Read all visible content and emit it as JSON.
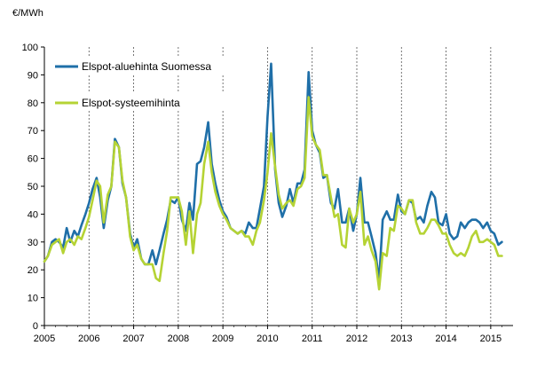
{
  "chart_data": {
    "type": "line",
    "title": "",
    "ylabel": "€/MWh",
    "xlabel": "",
    "ylim": [
      0,
      100
    ],
    "yticks": [
      "0",
      "10",
      "20",
      "30",
      "40",
      "50",
      "60",
      "70",
      "80",
      "90",
      "100"
    ],
    "xlim": [
      2005,
      2015.5
    ],
    "xticks": [
      "2005",
      "2006",
      "2007",
      "2008",
      "2009",
      "2010",
      "2011",
      "2012",
      "2013",
      "2014",
      "2015"
    ],
    "grid": "vertical dashed at year boundaries",
    "legend_position": "top-left",
    "series": [
      {
        "name": "Elspot-aluehinta Suomessa",
        "color": "#1f6fa8",
        "points": [
          [
            2005.0,
            23
          ],
          [
            2005.08,
            25
          ],
          [
            2005.17,
            30
          ],
          [
            2005.25,
            31
          ],
          [
            2005.33,
            30
          ],
          [
            2005.42,
            28
          ],
          [
            2005.5,
            35
          ],
          [
            2005.58,
            30
          ],
          [
            2005.67,
            34
          ],
          [
            2005.75,
            32
          ],
          [
            2005.83,
            36
          ],
          [
            2005.92,
            40
          ],
          [
            2006.0,
            44
          ],
          [
            2006.08,
            49
          ],
          [
            2006.17,
            53
          ],
          [
            2006.25,
            46
          ],
          [
            2006.33,
            35
          ],
          [
            2006.42,
            45
          ],
          [
            2006.5,
            50
          ],
          [
            2006.58,
            67
          ],
          [
            2006.67,
            64
          ],
          [
            2006.75,
            51
          ],
          [
            2006.83,
            46
          ],
          [
            2006.92,
            33
          ],
          [
            2007.0,
            28
          ],
          [
            2007.08,
            31
          ],
          [
            2007.17,
            24
          ],
          [
            2007.25,
            22
          ],
          [
            2007.33,
            22
          ],
          [
            2007.42,
            27
          ],
          [
            2007.5,
            22
          ],
          [
            2007.58,
            27
          ],
          [
            2007.67,
            33
          ],
          [
            2007.75,
            38
          ],
          [
            2007.83,
            45
          ],
          [
            2007.92,
            44
          ],
          [
            2008.0,
            46
          ],
          [
            2008.08,
            38
          ],
          [
            2008.17,
            34
          ],
          [
            2008.25,
            44
          ],
          [
            2008.33,
            38
          ],
          [
            2008.42,
            58
          ],
          [
            2008.5,
            59
          ],
          [
            2008.58,
            64
          ],
          [
            2008.67,
            73
          ],
          [
            2008.75,
            58
          ],
          [
            2008.83,
            51
          ],
          [
            2008.92,
            45
          ],
          [
            2009.0,
            41
          ],
          [
            2009.08,
            39
          ],
          [
            2009.17,
            35
          ],
          [
            2009.25,
            34
          ],
          [
            2009.33,
            33
          ],
          [
            2009.42,
            34
          ],
          [
            2009.5,
            33
          ],
          [
            2009.58,
            37
          ],
          [
            2009.67,
            35
          ],
          [
            2009.75,
            35
          ],
          [
            2009.83,
            42
          ],
          [
            2009.92,
            50
          ],
          [
            2010.0,
            75
          ],
          [
            2010.08,
            94
          ],
          [
            2010.17,
            56
          ],
          [
            2010.25,
            44
          ],
          [
            2010.33,
            39
          ],
          [
            2010.42,
            43
          ],
          [
            2010.5,
            49
          ],
          [
            2010.58,
            44
          ],
          [
            2010.67,
            51
          ],
          [
            2010.75,
            51
          ],
          [
            2010.83,
            56
          ],
          [
            2010.92,
            91
          ],
          [
            2011.0,
            70
          ],
          [
            2011.08,
            65
          ],
          [
            2011.17,
            62
          ],
          [
            2011.25,
            53
          ],
          [
            2011.33,
            54
          ],
          [
            2011.42,
            44
          ],
          [
            2011.5,
            42
          ],
          [
            2011.58,
            49
          ],
          [
            2011.67,
            37
          ],
          [
            2011.75,
            37
          ],
          [
            2011.83,
            42
          ],
          [
            2011.92,
            34
          ],
          [
            2012.0,
            40
          ],
          [
            2012.08,
            53
          ],
          [
            2012.17,
            37
          ],
          [
            2012.25,
            37
          ],
          [
            2012.33,
            32
          ],
          [
            2012.42,
            26
          ],
          [
            2012.5,
            16
          ],
          [
            2012.58,
            38
          ],
          [
            2012.67,
            41
          ],
          [
            2012.75,
            38
          ],
          [
            2012.83,
            38
          ],
          [
            2012.92,
            47
          ],
          [
            2013.0,
            41
          ],
          [
            2013.08,
            40
          ],
          [
            2013.17,
            45
          ],
          [
            2013.25,
            44
          ],
          [
            2013.33,
            38
          ],
          [
            2013.42,
            39
          ],
          [
            2013.5,
            37
          ],
          [
            2013.58,
            43
          ],
          [
            2013.67,
            48
          ],
          [
            2013.75,
            46
          ],
          [
            2013.83,
            37
          ],
          [
            2013.92,
            36
          ],
          [
            2014.0,
            40
          ],
          [
            2014.08,
            33
          ],
          [
            2014.17,
            31
          ],
          [
            2014.25,
            32
          ],
          [
            2014.33,
            37
          ],
          [
            2014.42,
            35
          ],
          [
            2014.5,
            37
          ],
          [
            2014.58,
            38
          ],
          [
            2014.67,
            38
          ],
          [
            2014.75,
            37
          ],
          [
            2014.83,
            35
          ],
          [
            2014.92,
            37
          ],
          [
            2015.0,
            34
          ],
          [
            2015.08,
            33
          ],
          [
            2015.17,
            29
          ],
          [
            2015.25,
            30
          ]
        ]
      },
      {
        "name": "Elspot-systeemihinta",
        "color": "#b5d334",
        "points": [
          [
            2005.0,
            23
          ],
          [
            2005.08,
            25
          ],
          [
            2005.17,
            29
          ],
          [
            2005.25,
            30
          ],
          [
            2005.33,
            31
          ],
          [
            2005.42,
            26
          ],
          [
            2005.5,
            30
          ],
          [
            2005.58,
            31
          ],
          [
            2005.67,
            29
          ],
          [
            2005.75,
            32
          ],
          [
            2005.83,
            31
          ],
          [
            2005.92,
            35
          ],
          [
            2006.0,
            39
          ],
          [
            2006.08,
            45
          ],
          [
            2006.17,
            52
          ],
          [
            2006.25,
            50
          ],
          [
            2006.33,
            37
          ],
          [
            2006.42,
            47
          ],
          [
            2006.5,
            50
          ],
          [
            2006.58,
            66
          ],
          [
            2006.67,
            64
          ],
          [
            2006.75,
            52
          ],
          [
            2006.83,
            46
          ],
          [
            2006.92,
            32
          ],
          [
            2007.0,
            27
          ],
          [
            2007.08,
            29
          ],
          [
            2007.17,
            24
          ],
          [
            2007.25,
            22
          ],
          [
            2007.33,
            22
          ],
          [
            2007.42,
            22
          ],
          [
            2007.5,
            17
          ],
          [
            2007.58,
            16
          ],
          [
            2007.67,
            26
          ],
          [
            2007.75,
            34
          ],
          [
            2007.83,
            46
          ],
          [
            2007.92,
            46
          ],
          [
            2008.0,
            46
          ],
          [
            2008.08,
            41
          ],
          [
            2008.17,
            29
          ],
          [
            2008.25,
            41
          ],
          [
            2008.33,
            26
          ],
          [
            2008.42,
            40
          ],
          [
            2008.5,
            44
          ],
          [
            2008.58,
            58
          ],
          [
            2008.67,
            66
          ],
          [
            2008.75,
            55
          ],
          [
            2008.83,
            48
          ],
          [
            2008.92,
            43
          ],
          [
            2009.0,
            40
          ],
          [
            2009.08,
            38
          ],
          [
            2009.17,
            35
          ],
          [
            2009.25,
            34
          ],
          [
            2009.33,
            33
          ],
          [
            2009.42,
            34
          ],
          [
            2009.5,
            32
          ],
          [
            2009.58,
            32
          ],
          [
            2009.67,
            29
          ],
          [
            2009.75,
            34
          ],
          [
            2009.83,
            37
          ],
          [
            2009.92,
            45
          ],
          [
            2010.0,
            55
          ],
          [
            2010.08,
            69
          ],
          [
            2010.17,
            57
          ],
          [
            2010.25,
            47
          ],
          [
            2010.33,
            42
          ],
          [
            2010.42,
            44
          ],
          [
            2010.5,
            45
          ],
          [
            2010.58,
            43
          ],
          [
            2010.67,
            49
          ],
          [
            2010.75,
            50
          ],
          [
            2010.83,
            53
          ],
          [
            2010.92,
            82
          ],
          [
            2011.0,
            68
          ],
          [
            2011.08,
            65
          ],
          [
            2011.17,
            63
          ],
          [
            2011.25,
            54
          ],
          [
            2011.33,
            54
          ],
          [
            2011.42,
            46
          ],
          [
            2011.5,
            39
          ],
          [
            2011.58,
            40
          ],
          [
            2011.67,
            29
          ],
          [
            2011.75,
            28
          ],
          [
            2011.83,
            42
          ],
          [
            2011.92,
            37
          ],
          [
            2012.0,
            40
          ],
          [
            2012.08,
            48
          ],
          [
            2012.17,
            29
          ],
          [
            2012.25,
            32
          ],
          [
            2012.33,
            27
          ],
          [
            2012.42,
            23
          ],
          [
            2012.5,
            13
          ],
          [
            2012.58,
            26
          ],
          [
            2012.67,
            25
          ],
          [
            2012.75,
            35
          ],
          [
            2012.83,
            34
          ],
          [
            2012.92,
            43
          ],
          [
            2013.0,
            42
          ],
          [
            2013.08,
            40
          ],
          [
            2013.17,
            45
          ],
          [
            2013.25,
            45
          ],
          [
            2013.33,
            37
          ],
          [
            2013.42,
            33
          ],
          [
            2013.5,
            33
          ],
          [
            2013.58,
            35
          ],
          [
            2013.67,
            38
          ],
          [
            2013.75,
            38
          ],
          [
            2013.83,
            36
          ],
          [
            2013.92,
            33
          ],
          [
            2014.0,
            33
          ],
          [
            2014.08,
            29
          ],
          [
            2014.17,
            26
          ],
          [
            2014.25,
            25
          ],
          [
            2014.33,
            26
          ],
          [
            2014.42,
            25
          ],
          [
            2014.5,
            28
          ],
          [
            2014.58,
            32
          ],
          [
            2014.67,
            34
          ],
          [
            2014.75,
            30
          ],
          [
            2014.83,
            30
          ],
          [
            2014.92,
            31
          ],
          [
            2015.0,
            30
          ],
          [
            2015.08,
            29
          ],
          [
            2015.17,
            25
          ],
          [
            2015.25,
            25
          ]
        ]
      }
    ]
  }
}
